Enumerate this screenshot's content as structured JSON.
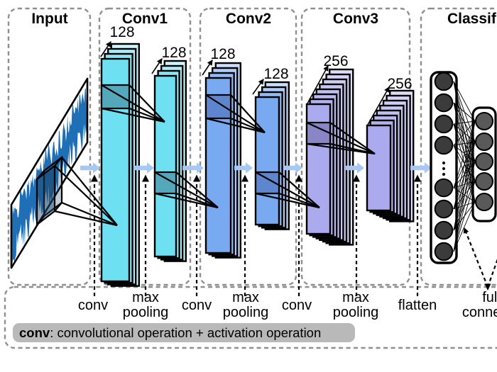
{
  "sections": [
    {
      "label": "Input"
    },
    {
      "label": "Conv1",
      "stacks": [
        {
          "count": "128"
        },
        {
          "count": "128"
        }
      ]
    },
    {
      "label": "Conv2",
      "stacks": [
        {
          "count": "128"
        },
        {
          "count": "128"
        }
      ]
    },
    {
      "label": "Conv3",
      "stacks": [
        {
          "count": "256"
        },
        {
          "count": "256"
        }
      ]
    },
    {
      "label": "Classifier"
    }
  ],
  "operation_labels": [
    "conv",
    "max\npooling",
    "conv",
    "max\npooling",
    "conv",
    "max\npooling",
    "flatten",
    "fully\nconnected"
  ],
  "legend": {
    "term": "conv",
    "definition": ": convolutional operation + activation operation"
  },
  "colors": {
    "conv1_front": "#6FDFF2",
    "conv1_back": "#CDF4FB",
    "conv1_band": "#55A8BC",
    "conv2_front": "#78A9F1",
    "conv2_back": "#CBDDFB",
    "conv2_band": "#5E86CE",
    "conv3_front": "#ACAAEE",
    "conv3_back": "#DEDDFA",
    "conv3_band": "#8886C6",
    "flow_arrow": "#A6C8F2",
    "signal": "#1E6FB6",
    "box_border": "#8F8F8F",
    "neuron_dark": "#3B3B3B",
    "neuron_gray": "#595959"
  }
}
